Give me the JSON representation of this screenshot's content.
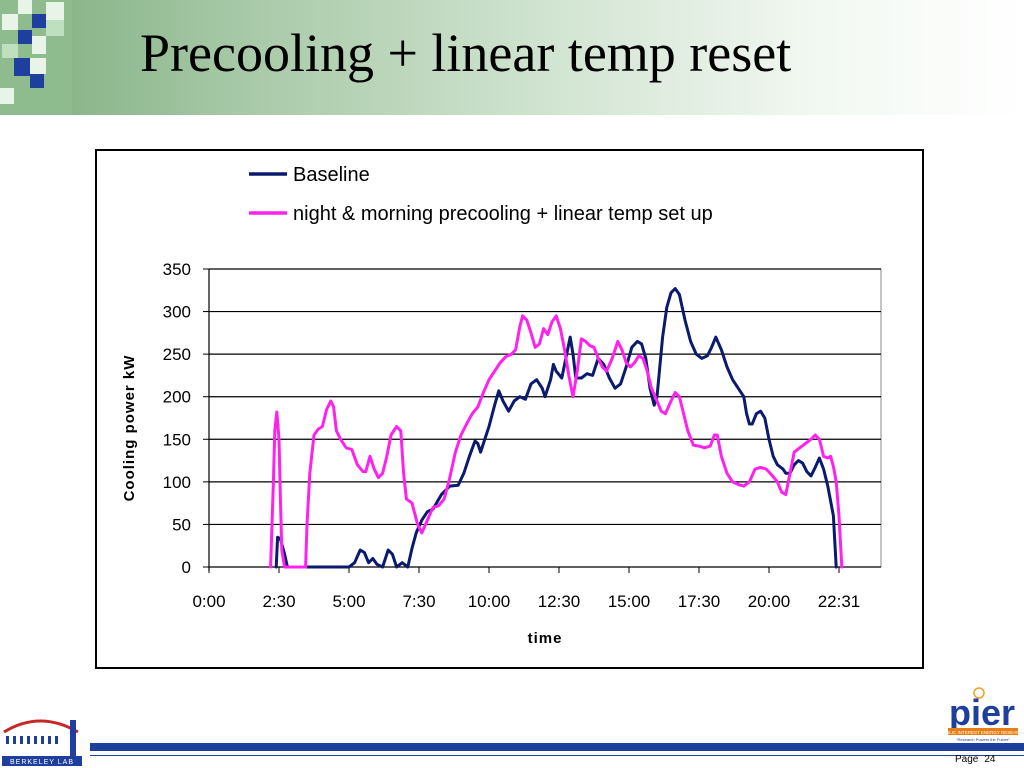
{
  "slide": {
    "title": "Precooling + linear temp reset",
    "page_label": "Page",
    "page_number": "24"
  },
  "logos": {
    "berkeley": "BERKELEY LAB",
    "pier": "pier",
    "pier_tagline_1": "PUBLIC INTEREST ENERGY RESEARCH",
    "pier_tagline_2": "\"Research Powers the Future\""
  },
  "colors": {
    "baseline": "#0a1a6e",
    "precooling": "#ff22ee",
    "footer_blue": "#1f3f9f",
    "header_green": "#7fae7f"
  },
  "chart_data": {
    "type": "line",
    "title": "",
    "xlabel": "time",
    "ylabel": "Cooling power   kW",
    "ylim": [
      0,
      350
    ],
    "yticks": [
      0,
      50,
      100,
      150,
      200,
      250,
      300,
      350
    ],
    "xlim_hours": [
      0,
      24
    ],
    "xtick_labels": [
      "0:00",
      "2:30",
      "5:00",
      "7:30",
      "10:00",
      "12:30",
      "15:00",
      "17:30",
      "20:00",
      "22:31"
    ],
    "grid": "horizontal",
    "legend_position": "top",
    "series": [
      {
        "name": "Baseline",
        "color": "#0a1a6e",
        "points": [
          [
            2.4,
            0
          ],
          [
            2.45,
            35
          ],
          [
            2.55,
            33
          ],
          [
            2.7,
            15
          ],
          [
            2.8,
            0
          ],
          [
            5.0,
            0
          ],
          [
            5.2,
            5
          ],
          [
            5.4,
            20
          ],
          [
            5.55,
            17
          ],
          [
            5.7,
            5
          ],
          [
            5.85,
            10
          ],
          [
            6.0,
            3
          ],
          [
            6.2,
            0
          ],
          [
            6.4,
            20
          ],
          [
            6.55,
            15
          ],
          [
            6.7,
            0
          ],
          [
            6.9,
            5
          ],
          [
            7.1,
            0
          ],
          [
            7.25,
            22
          ],
          [
            7.4,
            40
          ],
          [
            7.6,
            55
          ],
          [
            7.8,
            65
          ],
          [
            8.0,
            68
          ],
          [
            8.3,
            85
          ],
          [
            8.6,
            95
          ],
          [
            8.9,
            96
          ],
          [
            9.1,
            110
          ],
          [
            9.3,
            130
          ],
          [
            9.5,
            148
          ],
          [
            9.6,
            145
          ],
          [
            9.7,
            135
          ],
          [
            9.9,
            155
          ],
          [
            10.0,
            165
          ],
          [
            10.2,
            190
          ],
          [
            10.35,
            207
          ],
          [
            10.5,
            195
          ],
          [
            10.7,
            183
          ],
          [
            10.9,
            195
          ],
          [
            11.1,
            200
          ],
          [
            11.3,
            197
          ],
          [
            11.5,
            215
          ],
          [
            11.7,
            220
          ],
          [
            11.9,
            210
          ],
          [
            12.0,
            200
          ],
          [
            12.2,
            220
          ],
          [
            12.3,
            238
          ],
          [
            12.4,
            230
          ],
          [
            12.6,
            222
          ],
          [
            12.75,
            246
          ],
          [
            12.9,
            270
          ],
          [
            13.0,
            250
          ],
          [
            13.1,
            222
          ],
          [
            13.3,
            222
          ],
          [
            13.5,
            227
          ],
          [
            13.7,
            225
          ],
          [
            13.9,
            245
          ],
          [
            14.1,
            238
          ],
          [
            14.3,
            222
          ],
          [
            14.5,
            210
          ],
          [
            14.7,
            215
          ],
          [
            14.9,
            235
          ],
          [
            15.1,
            258
          ],
          [
            15.3,
            265
          ],
          [
            15.45,
            262
          ],
          [
            15.6,
            245
          ],
          [
            15.75,
            210
          ],
          [
            15.9,
            190
          ],
          [
            16.0,
            200
          ],
          [
            16.1,
            235
          ],
          [
            16.2,
            270
          ],
          [
            16.35,
            305
          ],
          [
            16.5,
            322
          ],
          [
            16.65,
            327
          ],
          [
            16.8,
            320
          ],
          [
            17.0,
            290
          ],
          [
            17.2,
            265
          ],
          [
            17.4,
            250
          ],
          [
            17.6,
            245
          ],
          [
            17.8,
            248
          ],
          [
            17.95,
            258
          ],
          [
            18.1,
            270
          ],
          [
            18.3,
            255
          ],
          [
            18.5,
            235
          ],
          [
            18.7,
            220
          ],
          [
            18.9,
            210
          ],
          [
            19.1,
            200
          ],
          [
            19.2,
            180
          ],
          [
            19.3,
            168
          ],
          [
            19.4,
            168
          ],
          [
            19.55,
            180
          ],
          [
            19.7,
            183
          ],
          [
            19.85,
            175
          ],
          [
            20.0,
            150
          ],
          [
            20.15,
            130
          ],
          [
            20.3,
            120
          ],
          [
            20.5,
            115
          ],
          [
            20.6,
            110
          ],
          [
            20.75,
            110
          ],
          [
            20.9,
            120
          ],
          [
            21.05,
            125
          ],
          [
            21.2,
            122
          ],
          [
            21.35,
            112
          ],
          [
            21.5,
            107
          ],
          [
            21.65,
            117
          ],
          [
            21.8,
            128
          ],
          [
            21.95,
            115
          ],
          [
            22.1,
            95
          ],
          [
            22.3,
            60
          ],
          [
            22.4,
            0
          ]
        ]
      },
      {
        "name": "night & morning precooling + linear temp set up",
        "color": "#ff22ee",
        "points": [
          [
            2.2,
            0
          ],
          [
            2.3,
            100
          ],
          [
            2.35,
            160
          ],
          [
            2.42,
            182
          ],
          [
            2.5,
            150
          ],
          [
            2.55,
            80
          ],
          [
            2.6,
            20
          ],
          [
            2.7,
            0
          ],
          [
            3.45,
            0
          ],
          [
            3.5,
            50
          ],
          [
            3.6,
            110
          ],
          [
            3.75,
            155
          ],
          [
            3.9,
            162
          ],
          [
            4.05,
            165
          ],
          [
            4.2,
            185
          ],
          [
            4.35,
            195
          ],
          [
            4.45,
            188
          ],
          [
            4.55,
            160
          ],
          [
            4.7,
            150
          ],
          [
            4.9,
            140
          ],
          [
            5.1,
            138
          ],
          [
            5.3,
            120
          ],
          [
            5.5,
            112
          ],
          [
            5.6,
            112
          ],
          [
            5.75,
            130
          ],
          [
            5.9,
            115
          ],
          [
            6.05,
            105
          ],
          [
            6.2,
            110
          ],
          [
            6.35,
            130
          ],
          [
            6.5,
            155
          ],
          [
            6.7,
            165
          ],
          [
            6.85,
            160
          ],
          [
            6.95,
            110
          ],
          [
            7.05,
            80
          ],
          [
            7.25,
            75
          ],
          [
            7.45,
            50
          ],
          [
            7.6,
            40
          ],
          [
            7.8,
            55
          ],
          [
            8.0,
            70
          ],
          [
            8.2,
            72
          ],
          [
            8.4,
            80
          ],
          [
            8.6,
            105
          ],
          [
            8.8,
            135
          ],
          [
            9.0,
            155
          ],
          [
            9.2,
            168
          ],
          [
            9.4,
            180
          ],
          [
            9.6,
            188
          ],
          [
            9.8,
            205
          ],
          [
            10.0,
            220
          ],
          [
            10.2,
            230
          ],
          [
            10.4,
            240
          ],
          [
            10.6,
            247
          ],
          [
            10.8,
            250
          ],
          [
            10.95,
            255
          ],
          [
            11.1,
            282
          ],
          [
            11.2,
            295
          ],
          [
            11.35,
            290
          ],
          [
            11.5,
            275
          ],
          [
            11.65,
            258
          ],
          [
            11.8,
            262
          ],
          [
            11.95,
            280
          ],
          [
            12.1,
            273
          ],
          [
            12.25,
            288
          ],
          [
            12.4,
            295
          ],
          [
            12.55,
            280
          ],
          [
            12.7,
            255
          ],
          [
            12.85,
            225
          ],
          [
            13.0,
            200
          ],
          [
            13.15,
            230
          ],
          [
            13.3,
            268
          ],
          [
            13.45,
            265
          ],
          [
            13.6,
            260
          ],
          [
            13.75,
            258
          ],
          [
            13.9,
            245
          ],
          [
            14.05,
            235
          ],
          [
            14.2,
            230
          ],
          [
            14.4,
            245
          ],
          [
            14.6,
            265
          ],
          [
            14.75,
            255
          ],
          [
            14.9,
            240
          ],
          [
            15.05,
            235
          ],
          [
            15.2,
            240
          ],
          [
            15.35,
            248
          ],
          [
            15.5,
            245
          ],
          [
            15.65,
            230
          ],
          [
            15.8,
            210
          ],
          [
            16.0,
            195
          ],
          [
            16.15,
            183
          ],
          [
            16.3,
            180
          ],
          [
            16.5,
            195
          ],
          [
            16.65,
            205
          ],
          [
            16.8,
            200
          ],
          [
            16.95,
            180
          ],
          [
            17.1,
            160
          ],
          [
            17.3,
            143
          ],
          [
            17.5,
            142
          ],
          [
            17.7,
            140
          ],
          [
            17.9,
            142
          ],
          [
            18.05,
            155
          ],
          [
            18.15,
            155
          ],
          [
            18.3,
            130
          ],
          [
            18.5,
            110
          ],
          [
            18.7,
            100
          ],
          [
            18.9,
            97
          ],
          [
            19.1,
            95
          ],
          [
            19.3,
            100
          ],
          [
            19.5,
            115
          ],
          [
            19.7,
            117
          ],
          [
            19.9,
            115
          ],
          [
            20.1,
            108
          ],
          [
            20.3,
            100
          ],
          [
            20.45,
            88
          ],
          [
            20.6,
            85
          ],
          [
            20.75,
            110
          ],
          [
            20.9,
            135
          ],
          [
            21.1,
            140
          ],
          [
            21.3,
            145
          ],
          [
            21.5,
            150
          ],
          [
            21.65,
            155
          ],
          [
            21.8,
            150
          ],
          [
            21.95,
            130
          ],
          [
            22.1,
            128
          ],
          [
            22.2,
            130
          ],
          [
            22.3,
            118
          ],
          [
            22.4,
            100
          ],
          [
            22.5,
            60
          ],
          [
            22.6,
            0
          ]
        ]
      }
    ]
  }
}
